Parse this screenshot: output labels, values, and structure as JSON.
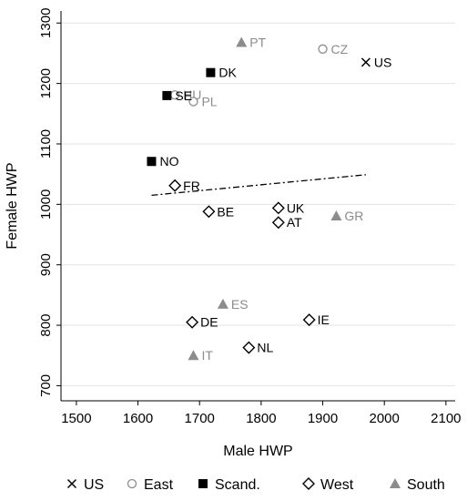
{
  "chart_data": {
    "type": "scatter",
    "xlabel": "Male HWP",
    "ylabel": "Female HWP",
    "xlim": [
      1475,
      2115
    ],
    "ylim": [
      675,
      1320
    ],
    "xticks": [
      1500,
      1600,
      1700,
      1800,
      1900,
      2000,
      2100
    ],
    "yticks": [
      700,
      800,
      900,
      1000,
      1100,
      1200,
      1300
    ],
    "grid": true,
    "legend_position": "bottom",
    "colors": {
      "black": "#000000",
      "gray": "#8c8c8c"
    },
    "groups": [
      {
        "name": "US",
        "marker": "x",
        "color": "#000000"
      },
      {
        "name": "East",
        "marker": "circle-open",
        "color": "#8c8c8c"
      },
      {
        "name": "Scand.",
        "marker": "square-filled",
        "color": "#000000"
      },
      {
        "name": "West",
        "marker": "diamond-open",
        "color": "#000000"
      },
      {
        "name": "South",
        "marker": "triangle-filled",
        "color": "#8c8c8c"
      }
    ],
    "points": [
      {
        "label": "US",
        "group": "US",
        "x": 1970,
        "y": 1235
      },
      {
        "label": "CZ",
        "group": "East",
        "x": 1900,
        "y": 1257
      },
      {
        "label": "HU",
        "group": "East",
        "x": 1660,
        "y": 1181
      },
      {
        "label": "PL",
        "group": "East",
        "x": 1690,
        "y": 1170
      },
      {
        "label": "DK",
        "group": "Scand.",
        "x": 1718,
        "y": 1218
      },
      {
        "label": "SE",
        "group": "Scand.",
        "x": 1647,
        "y": 1180
      },
      {
        "label": "NO",
        "group": "Scand.",
        "x": 1622,
        "y": 1071
      },
      {
        "label": "FR",
        "group": "West",
        "x": 1660,
        "y": 1031
      },
      {
        "label": "BE",
        "group": "West",
        "x": 1715,
        "y": 988
      },
      {
        "label": "UK",
        "group": "West",
        "x": 1828,
        "y": 994
      },
      {
        "label": "AT",
        "group": "West",
        "x": 1828,
        "y": 970
      },
      {
        "label": "DE",
        "group": "West",
        "x": 1688,
        "y": 805
      },
      {
        "label": "IE",
        "group": "West",
        "x": 1878,
        "y": 809
      },
      {
        "label": "NL",
        "group": "West",
        "x": 1780,
        "y": 763
      },
      {
        "label": "PT",
        "group": "South",
        "x": 1768,
        "y": 1268
      },
      {
        "label": "GR",
        "group": "South",
        "x": 1922,
        "y": 981
      },
      {
        "label": "ES",
        "group": "South",
        "x": 1738,
        "y": 835
      },
      {
        "label": "IT",
        "group": "South",
        "x": 1690,
        "y": 750
      }
    ],
    "fit_line": {
      "style": "dash-dot",
      "x": [
        1622,
        1970
      ],
      "y": [
        1015,
        1049
      ]
    }
  }
}
